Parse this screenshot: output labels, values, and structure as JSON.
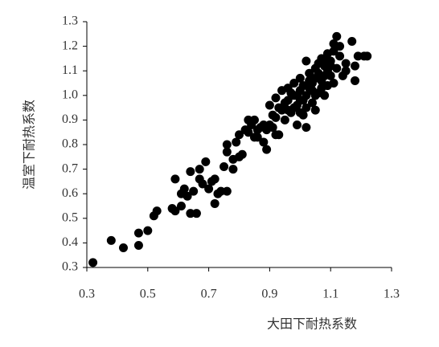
{
  "chart_data": {
    "type": "scatter",
    "x_label": "大田下耐热系数",
    "y_label": "温室下耐热系数",
    "color": "#000000",
    "xlim": [
      0.3,
      1.3
    ],
    "ylim": [
      0.3,
      1.3
    ],
    "xticks": [
      0.3,
      0.5,
      0.7,
      0.9,
      1.1,
      1.3
    ],
    "yticks": [
      0.3,
      0.4,
      0.5,
      0.6,
      0.7,
      0.8,
      0.9,
      {
        "value": 1,
        "label": "1.0"
      },
      1.1,
      1.2,
      1.3
    ],
    "grid": false,
    "x": [
      0.32,
      0.38,
      0.42,
      0.47,
      0.47,
      0.5,
      0.52,
      0.53,
      0.58,
      0.59,
      0.59,
      0.61,
      0.61,
      0.62,
      0.63,
      0.64,
      0.65,
      0.64,
      0.66,
      0.67,
      0.67,
      0.68,
      0.69,
      0.7,
      0.71,
      0.72,
      0.72,
      0.73,
      0.74,
      0.75,
      0.76,
      0.76,
      0.76,
      0.78,
      0.78,
      0.79,
      0.8,
      0.8,
      0.81,
      0.82,
      0.83,
      0.83,
      0.84,
      0.85,
      0.85,
      0.86,
      0.87,
      0.88,
      0.89,
      0.89,
      0.9,
      0.9,
      0.91,
      0.92,
      0.92,
      0.93,
      0.94,
      0.94,
      0.95,
      0.96,
      0.96,
      0.97,
      0.98,
      0.98,
      0.99,
      0.99,
      1.0,
      1.0,
      1.01,
      1.01,
      1.02,
      1.02,
      1.03,
      1.03,
      1.04,
      1.04,
      1.05,
      1.05,
      1.06,
      1.07,
      1.07,
      1.08,
      1.08,
      1.09,
      1.09,
      1.1,
      1.1,
      1.11,
      1.11,
      1.12,
      1.12,
      1.13,
      1.14,
      1.15,
      1.17,
      1.18,
      1.19,
      1.21,
      1.22,
      1.18,
      1.15,
      0.97,
      0.99,
      1.0,
      1.01,
      1.02,
      1.03,
      1.04,
      1.05,
      1.06,
      1.07,
      1.08,
      1.09,
      1.1,
      0.98,
      0.96,
      0.95,
      0.93,
      1.0,
      1.02,
      1.05,
      1.08,
      1.11,
      1.13,
      1.06,
      0.91,
      0.88,
      0.86,
      0.92
    ],
    "values": [
      0.32,
      0.41,
      0.38,
      0.39,
      0.44,
      0.45,
      0.51,
      0.53,
      0.54,
      0.66,
      0.53,
      0.55,
      0.6,
      0.62,
      0.59,
      0.69,
      0.61,
      0.52,
      0.52,
      0.7,
      0.66,
      0.64,
      0.73,
      0.62,
      0.65,
      0.66,
      0.56,
      0.6,
      0.61,
      0.71,
      0.77,
      0.61,
      0.8,
      0.7,
      0.74,
      0.81,
      0.75,
      0.84,
      0.76,
      0.86,
      0.9,
      0.85,
      0.88,
      0.83,
      0.9,
      0.83,
      0.87,
      0.81,
      0.86,
      0.78,
      0.96,
      0.88,
      0.87,
      0.91,
      0.99,
      0.84,
      0.94,
      1.02,
      0.9,
      0.98,
      1.03,
      0.93,
      1.0,
      1.05,
      0.88,
      0.96,
      1.02,
      1.07,
      0.92,
      0.98,
      1.14,
      0.87,
      1.03,
      1.09,
      0.97,
      1.05,
      0.94,
      1.11,
      1.01,
      1.15,
      1.06,
      1.0,
      1.12,
      1.04,
      1.17,
      1.08,
      1.14,
      1.21,
      1.05,
      1.24,
      1.11,
      1.16,
      1.08,
      1.13,
      1.22,
      1.12,
      1.16,
      1.16,
      1.16,
      1.06,
      1.1,
      1.01,
      1.0,
      0.98,
      1.04,
      1.0,
      1.06,
      1.02,
      1.07,
      1.09,
      1.03,
      1.08,
      1.1,
      1.12,
      0.95,
      0.94,
      0.97,
      0.95,
      0.93,
      0.95,
      1.0,
      1.14,
      1.18,
      1.2,
      1.13,
      0.92,
      0.88,
      0.86,
      0.84
    ]
  }
}
